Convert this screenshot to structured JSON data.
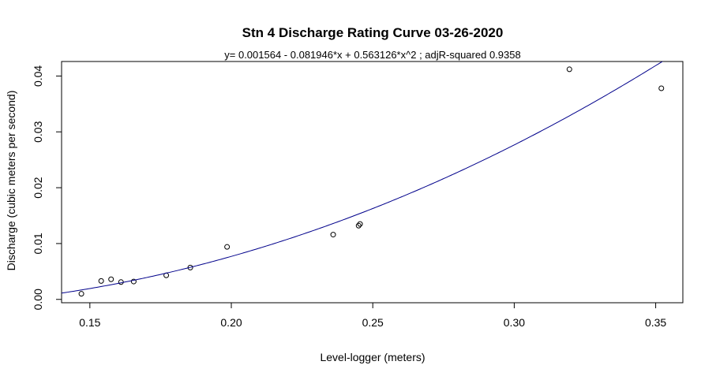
{
  "chart_data": {
    "type": "scatter",
    "title": "Stn 4 Discharge Rating Curve 03-26-2020",
    "subtitle": "y=  0.001564  - 0.081946*x + 0.563126*x^2 ; adjR-squared 0.9358",
    "xlabel": "Level-logger (meters)",
    "ylabel": "Discharge (cubic meters per second)",
    "xlim": [
      0.14,
      0.3596
    ],
    "ylim": [
      -0.0006,
      0.0426
    ],
    "x_ticks": [
      0.15,
      0.2,
      0.25,
      0.3,
      0.35
    ],
    "x_tick_labels": [
      "0.15",
      "0.20",
      "0.25",
      "0.30",
      "0.35"
    ],
    "y_ticks": [
      0.0,
      0.01,
      0.02,
      0.03,
      0.04
    ],
    "y_tick_labels": [
      "0.00",
      "0.01",
      "0.02",
      "0.03",
      "0.04"
    ],
    "grid": false,
    "series": [
      {
        "type": "points",
        "marker": "open-circle",
        "color": "#000000",
        "points": [
          {
            "x": 0.147,
            "y": 0.001
          },
          {
            "x": 0.154,
            "y": 0.0033
          },
          {
            "x": 0.1575,
            "y": 0.0036
          },
          {
            "x": 0.161,
            "y": 0.0031
          },
          {
            "x": 0.1655,
            "y": 0.0032
          },
          {
            "x": 0.177,
            "y": 0.0043
          },
          {
            "x": 0.1855,
            "y": 0.0057
          },
          {
            "x": 0.1985,
            "y": 0.0094
          },
          {
            "x": 0.236,
            "y": 0.0116
          },
          {
            "x": 0.245,
            "y": 0.0132
          },
          {
            "x": 0.2455,
            "y": 0.0135
          },
          {
            "x": 0.3195,
            "y": 0.0412
          },
          {
            "x": 0.352,
            "y": 0.0378
          }
        ]
      },
      {
        "type": "fit-curve",
        "color": "#00008b",
        "coefficients": [
          0.001564,
          -0.081946,
          0.563126
        ]
      }
    ]
  }
}
